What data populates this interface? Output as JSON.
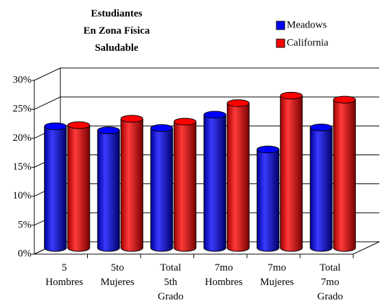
{
  "chart_data": {
    "type": "bar",
    "title": "Estudiantes\nEn Zona Física\nSaludable",
    "categories": [
      "5 Hombres",
      "5to Mujeres",
      "Total 5th Grado",
      "7mo Hombres",
      "7mo Mujeres",
      "Total 7mo Grado"
    ],
    "series": [
      {
        "name": "Meadows",
        "color": "#0000ff",
        "values": [
          21,
          20.3,
          20.7,
          23,
          17,
          20.8
        ]
      },
      {
        "name": "California",
        "color": "#ff0000",
        "values": [
          21.2,
          22.3,
          21.8,
          25,
          26.3,
          25.6
        ]
      }
    ],
    "ylim": [
      0,
      30
    ],
    "yticks": [
      {
        "value": 0,
        "label": "0%"
      },
      {
        "value": 5,
        "label": "5%"
      },
      {
        "value": 10,
        "label": "10%"
      },
      {
        "value": 15,
        "label": "15%"
      },
      {
        "value": 20,
        "label": "20%"
      },
      {
        "value": 25,
        "label": "25%"
      },
      {
        "value": 30,
        "label": "30%"
      }
    ],
    "grid": true,
    "legend": "top-right"
  }
}
